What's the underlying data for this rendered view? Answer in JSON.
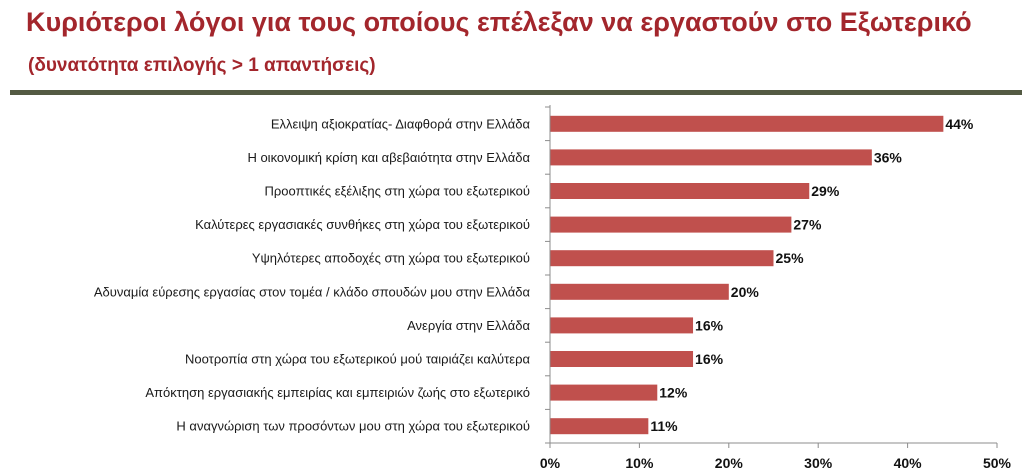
{
  "header": {
    "title": "Κυριότεροι λόγοι για τους οποίους επέλεξαν να εργαστούν στο Εξωτερικό",
    "subtitle": "(δυνατότητα επιλογής > 1 απαντήσεις)"
  },
  "chart_data": {
    "type": "bar",
    "orientation": "horizontal",
    "categories": [
      "Ελλειψη αξιοκρατίας- Διαφθορά στην Ελλάδα",
      "Η οικονομική κρίση και αβεβαιότητα στην Ελλάδα",
      "Προοπτικές εξέλιξης στη χώρα του εξωτερικού",
      "Καλύτερες εργασιακές συνθήκες στη χώρα του εξωτερικού",
      "Υψηλότερες αποδοχές στη χώρα του εξωτερικού",
      "Αδυναμία εύρεσης εργασίας στον τομέα / κλάδο σπουδών μου στην Ελλάδα",
      "Ανεργία στην Ελλάδα",
      "Νοοτροπία στη χώρα του εξωτερικού μού ταιριάζει καλύτερα",
      "Απόκτηση εργασιακής εμπειρίας και εμπειριών ζωής στο εξωτερικό",
      "Η αναγνώριση των προσόντων μου στη χώρα του εξωτερικού"
    ],
    "values": [
      44,
      36,
      29,
      27,
      25,
      20,
      16,
      16,
      12,
      11
    ],
    "value_labels": [
      "44%",
      "36%",
      "29%",
      "27%",
      "25%",
      "20%",
      "16%",
      "16%",
      "12%",
      "11%"
    ],
    "xlim": [
      0,
      50
    ],
    "xticks": [
      0,
      10,
      20,
      30,
      40,
      50
    ],
    "xtick_labels": [
      "0%",
      "10%",
      "20%",
      "30%",
      "40%",
      "50%"
    ],
    "bar_color": "#c0504d",
    "grid": false,
    "legend": "none"
  }
}
